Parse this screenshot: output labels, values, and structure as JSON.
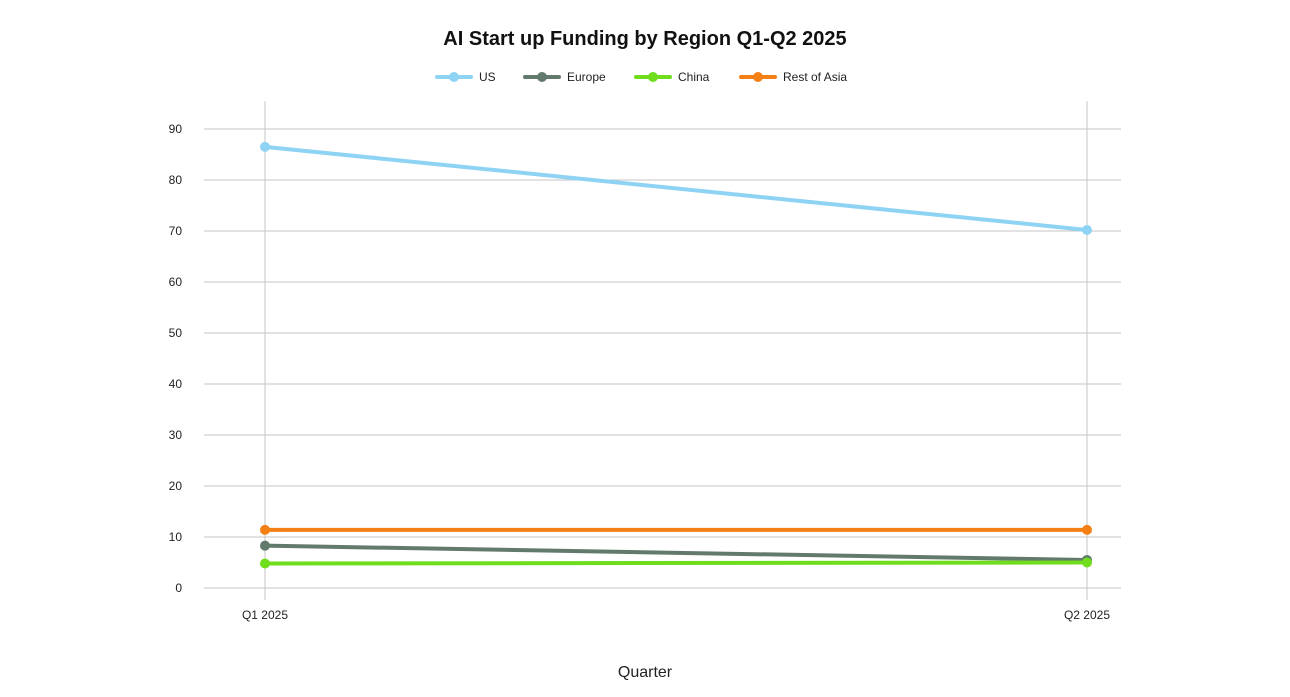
{
  "chart_data": {
    "type": "line",
    "title": "AI Start up Funding by Region Q1-Q2 2025",
    "xlabel": "Quarter",
    "ylabel": "",
    "categories": [
      "Q1 2025",
      "Q2 2025"
    ],
    "ylim": [
      0,
      90
    ],
    "yticks": [
      0,
      10,
      20,
      30,
      40,
      50,
      60,
      70,
      80,
      90
    ],
    "grid": true,
    "legend_position": "top-center",
    "series": [
      {
        "name": "US",
        "color": "#8fd3f4",
        "values": [
          86.5,
          70.2
        ]
      },
      {
        "name": "Europe",
        "color": "#627a6b",
        "values": [
          8.3,
          5.5
        ]
      },
      {
        "name": "China",
        "color": "#6fdc1c",
        "values": [
          4.8,
          5.0
        ]
      },
      {
        "name": "Rest of Asia",
        "color": "#f47f14",
        "values": [
          11.4,
          11.4
        ]
      }
    ]
  }
}
